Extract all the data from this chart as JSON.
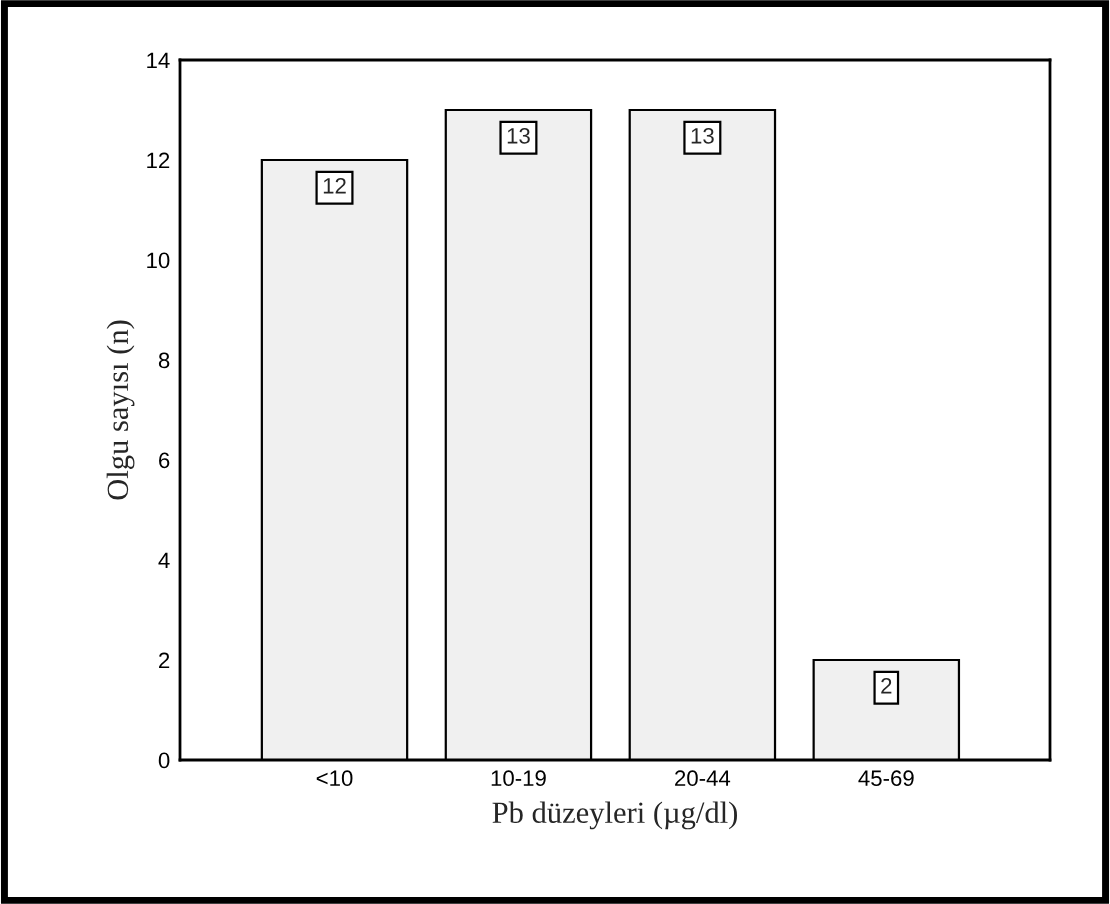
{
  "chart_data": {
    "type": "bar",
    "xlabel": "Pb düzeyleri (µg/dl)",
    "ylabel": "Olgu sayısı (n)",
    "categories": [
      "<10",
      "10-19",
      "20-44",
      "45-69"
    ],
    "values": [
      12,
      13,
      13,
      2
    ],
    "color": "#f0f0f0",
    "ylim": [
      0,
      14
    ],
    "yticks": [
      0,
      2,
      4,
      6,
      8,
      10,
      12,
      14
    ],
    "grid": false,
    "data_labels": true
  }
}
